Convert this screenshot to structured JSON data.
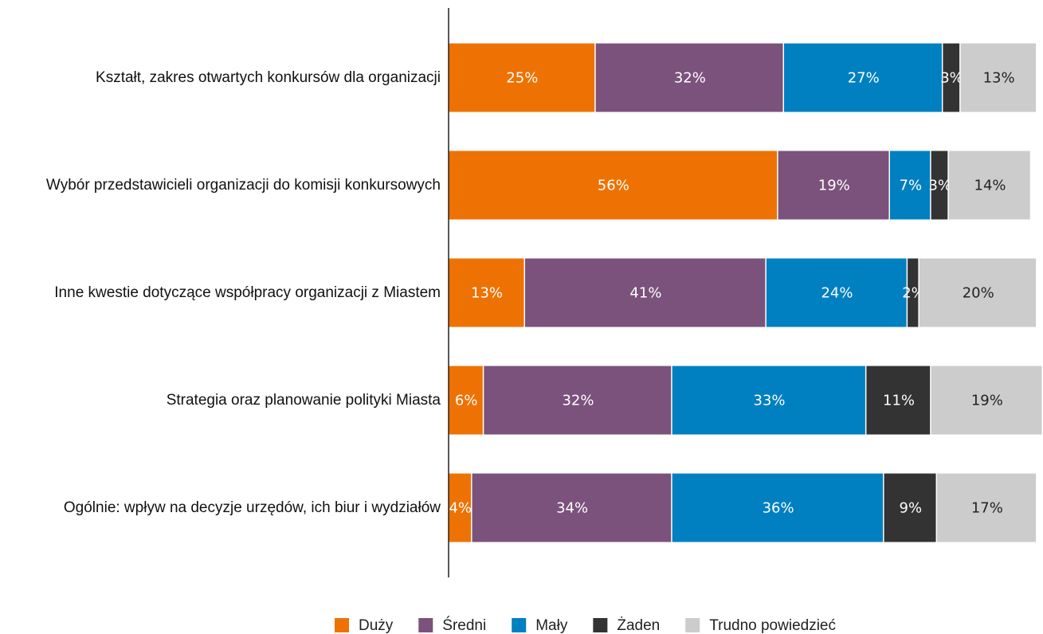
{
  "chart_data": {
    "type": "stacked-bar-horizontal",
    "categories": [
      "Kształt, zakres otwartych konkursów dla organizacji",
      "Wybór przedstawicieli organizacji do komisji konkursowych",
      "Inne kwestie dotyczące współpracy organizacji z Miastem",
      "Strategia oraz planowanie polityki Miasta",
      "Ogólnie: wpływ na decyzje urzędów, ich biur i wydziałów"
    ],
    "xlim": [
      0,
      101
    ],
    "series": [
      {
        "name": "Duży",
        "color": "#ee7203",
        "values": [
          25,
          56,
          13,
          6,
          4
        ],
        "value_labels": [
          "25%",
          "56%",
          "13%",
          "6%",
          "4%"
        ]
      },
      {
        "name": "Średni",
        "color": "#7b527c",
        "values": [
          32,
          19,
          41,
          32,
          34
        ],
        "value_labels": [
          "32%",
          "19%",
          "41%",
          "32%",
          "34%"
        ]
      },
      {
        "name": "Mały",
        "color": "#0080c0",
        "values": [
          27,
          7,
          24,
          33,
          36
        ],
        "value_labels": [
          "27%",
          "7%",
          "24%",
          "33%",
          "36%"
        ]
      },
      {
        "name": "Żaden",
        "color": "#333333",
        "values": [
          3,
          3,
          2,
          11,
          9
        ],
        "value_labels": [
          "3%",
          "3%",
          "2%",
          "11%",
          "9%"
        ]
      },
      {
        "name": "Trudno powiedzieć",
        "color": "#cccccc",
        "values": [
          13,
          14,
          20,
          19,
          17
        ],
        "value_labels": [
          "13%",
          "14%",
          "20%",
          "19%",
          "17%"
        ]
      }
    ]
  }
}
